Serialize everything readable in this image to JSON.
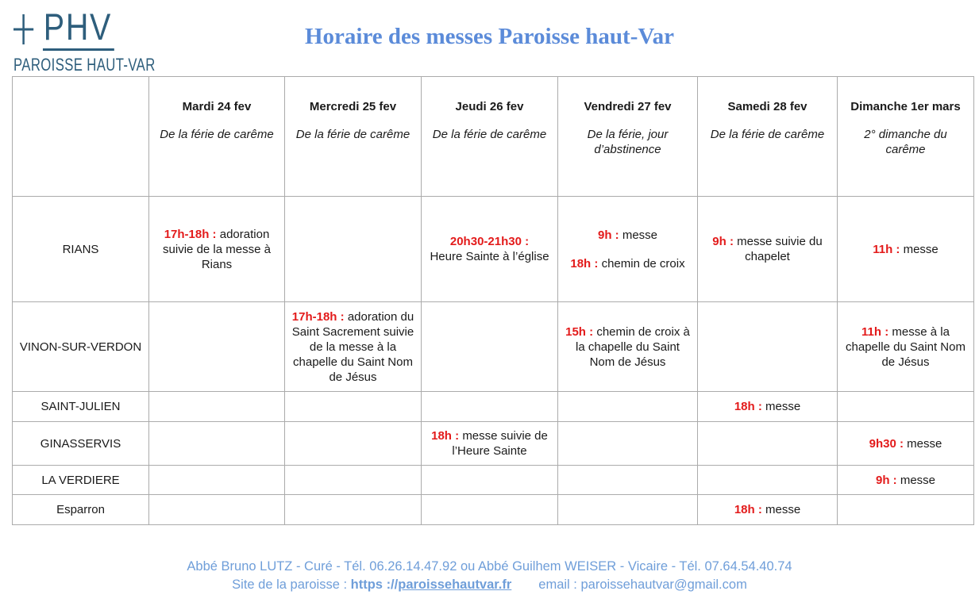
{
  "logo": {
    "acronym": "PHV",
    "name": "PAROISSE HAUT-VAR"
  },
  "title": "Horaire des messes Paroisse haut-Var",
  "table": {
    "columns": [
      {
        "day": "Mardi 24 fev",
        "note": "De la férie de carême"
      },
      {
        "day": "Mercredi 25 fev",
        "note": "De la férie de carême"
      },
      {
        "day": "Jeudi 26 fev",
        "note": "De la férie de carême"
      },
      {
        "day": "Vendredi 27 fev",
        "note": "De la férie, jour d’abstinence"
      },
      {
        "day": "Samedi 28 fev",
        "note": "De la férie de carême"
      },
      {
        "day": "Dimanche 1er mars",
        "note": "2° dimanche du carême"
      }
    ],
    "rows": [
      {
        "location": "RIANS",
        "cells": [
          [
            {
              "time": "17h-18h :",
              "text": "adoration suivie de la messe à Rians"
            }
          ],
          [],
          [
            {
              "time": "20h30-21h30 :",
              "text": "Heure Sainte à l’église",
              "time_own_line": true
            }
          ],
          [
            {
              "time": "9h :",
              "text": "messe"
            },
            {
              "time": "18h :",
              "text": "chemin de croix"
            }
          ],
          [
            {
              "time": "9h :",
              "text": "messe suivie du chapelet"
            }
          ],
          [
            {
              "time": "11h :",
              "text": "messe"
            }
          ]
        ]
      },
      {
        "location": "VINON-SUR-VERDON",
        "cells": [
          [],
          [
            {
              "time": "17h-18h :",
              "text": "adoration du Saint Sacrement suivie de la messe à la chapelle du Saint Nom de Jésus"
            }
          ],
          [],
          [
            {
              "time": "15h :",
              "text": "chemin de croix à la chapelle du Saint Nom de Jésus"
            }
          ],
          [],
          [
            {
              "time": "11h :",
              "text": "messe à la chapelle du Saint Nom de Jésus"
            }
          ]
        ]
      },
      {
        "location": "SAINT-JULIEN",
        "cells": [
          [],
          [],
          [],
          [],
          [
            {
              "time": "18h :",
              "text": "messe"
            }
          ],
          []
        ]
      },
      {
        "location": "GINASSERVIS",
        "cells": [
          [],
          [],
          [
            {
              "time": "18h :",
              "text": "messe suivie de l’Heure Sainte"
            }
          ],
          [],
          [],
          [
            {
              "time": "9h30 :",
              "text": "messe"
            }
          ]
        ]
      },
      {
        "location": "LA VERDIERE",
        "cells": [
          [],
          [],
          [],
          [],
          [],
          [
            {
              "time": "9h :",
              "text": "messe"
            }
          ]
        ]
      },
      {
        "location": "Esparron",
        "cells": [
          [],
          [],
          [],
          [],
          [
            {
              "time": "18h :",
              "text": "messe"
            }
          ],
          []
        ]
      }
    ]
  },
  "footer": {
    "line1": "Abbé Bruno LUTZ - Curé - Tél. 06.26.14.47.92 ou Abbé Guilhem WEISER - Vicaire - Tél. 07.64.54.40.74",
    "site_label": "Site de la paroisse : ",
    "site_scheme": "https ://",
    "site_domain": "paroissehautvar.fr",
    "email_text": "email : paroissehautvar@gmail.com"
  },
  "colors": {
    "accent_blue_title": "#5b8bd9",
    "accent_blue_footer": "#6f9ed9",
    "logo_blue": "#2e5e7c",
    "time_red": "#e31b1b",
    "table_border": "#ababab"
  }
}
